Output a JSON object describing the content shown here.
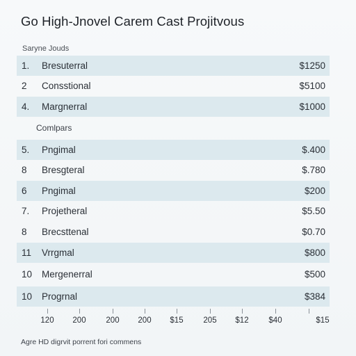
{
  "title": "Go High-Jnovel Carem Cast Projitvous",
  "section_caption": "Saryne Jouds",
  "subheading": "Comlpars",
  "rows": [
    {
      "num": "1.",
      "name": "Bresuterral",
      "price": "$1250"
    },
    {
      "num": "2",
      "name": "Consstional",
      "price": "$5100"
    },
    {
      "num": "4.",
      "name": "Margnerral",
      "price": "$1000"
    },
    {
      "num": "5.",
      "name": "Pngimal",
      "price": "$.400"
    },
    {
      "num": "8",
      "name": "Bresgteral",
      "price": "$.780"
    },
    {
      "num": "6",
      "name": "Pngimal",
      "price": "$200"
    },
    {
      "num": "7.",
      "name": "Projetheral",
      "price": "$5.50"
    },
    {
      "num": "8",
      "name": "Brecsttenal",
      "price": "$0.70"
    },
    {
      "num": "11",
      "name": "Vrrgmal",
      "price": "$800"
    },
    {
      "num": "10",
      "name": "Mergenerral",
      "price": "$500"
    },
    {
      "num": "10",
      "name": "Progrnal",
      "price": "$384"
    }
  ],
  "axis_labels": [
    "120",
    "200",
    "200",
    "200",
    "$15",
    "205",
    "$12",
    "$40",
    "$15"
  ],
  "footnote": "Agre HD digrvit porrent fori commens",
  "colors": {
    "row_shade": "#dce9ee",
    "background": "#f4f7f8",
    "text": "#2a2f36"
  }
}
